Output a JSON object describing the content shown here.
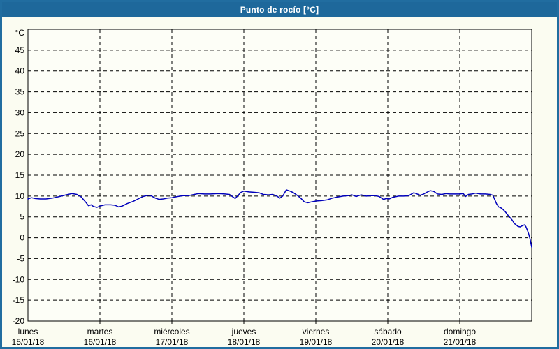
{
  "window": {
    "title": "Punto de rocío [°C]"
  },
  "colors": {
    "titlebar": "#1e689b",
    "window_border": "#216da0",
    "page_background": "#fbfcf1",
    "plot_background": "#fdfef7",
    "grid": "#000000",
    "text": "#000000",
    "series_line": "#0000bb"
  },
  "chart_data": {
    "type": "line",
    "title": "Punto de rocío [°C]",
    "y_unit": "°C",
    "ylim": [
      -20,
      50
    ],
    "y_tick_step": 5,
    "y_tick_labels": [
      45,
      40,
      35,
      30,
      25,
      20,
      15,
      10,
      5,
      0,
      -5,
      -10,
      -15,
      -20
    ],
    "x_ticks": [
      {
        "day": "lunes",
        "date": "15/01/18"
      },
      {
        "day": "martes",
        "date": "16/01/18"
      },
      {
        "day": "miércoles",
        "date": "17/01/18"
      },
      {
        "day": "jueves",
        "date": "18/01/18"
      },
      {
        "day": "viernes",
        "date": "19/01/18"
      },
      {
        "day": "sábado",
        "date": "20/01/18"
      },
      {
        "day": "domingo",
        "date": "21/01/18"
      }
    ],
    "grid": "dashed, both axes, every 5 °C and every day",
    "legend_position": "none",
    "series": [
      {
        "name": "Punto de rocío",
        "color": "#0000bb",
        "x_unit": "days since 15/01/18 00:00",
        "points": [
          [
            0,
            9.3
          ],
          [
            0.05,
            9.6
          ],
          [
            0.1,
            9.4
          ],
          [
            0.17,
            9.3
          ],
          [
            0.25,
            9.3
          ],
          [
            0.34,
            9.5
          ],
          [
            0.44,
            9.9
          ],
          [
            0.53,
            10.3
          ],
          [
            0.61,
            10.6
          ],
          [
            0.68,
            10.4
          ],
          [
            0.74,
            9.8
          ],
          [
            0.8,
            8.6
          ],
          [
            0.84,
            7.7
          ],
          [
            0.88,
            7.9
          ],
          [
            0.91,
            7.5
          ],
          [
            0.96,
            7.3
          ],
          [
            1,
            7.6
          ],
          [
            1.07,
            7.9
          ],
          [
            1.15,
            7.9
          ],
          [
            1.21,
            7.8
          ],
          [
            1.26,
            7.4
          ],
          [
            1.31,
            7.6
          ],
          [
            1.38,
            8.2
          ],
          [
            1.46,
            8.7
          ],
          [
            1.53,
            9.3
          ],
          [
            1.6,
            9.9
          ],
          [
            1.67,
            10.2
          ],
          [
            1.71,
            10.1
          ],
          [
            1.77,
            9.5
          ],
          [
            1.82,
            9.2
          ],
          [
            1.88,
            9.3
          ],
          [
            1.94,
            9.5
          ],
          [
            2,
            9.6
          ],
          [
            2.08,
            9.9
          ],
          [
            2.16,
            10.1
          ],
          [
            2.23,
            10.1
          ],
          [
            2.31,
            10.4
          ],
          [
            2.37,
            10.6
          ],
          [
            2.45,
            10.5
          ],
          [
            2.54,
            10.5
          ],
          [
            2.64,
            10.6
          ],
          [
            2.74,
            10.5
          ],
          [
            2.8,
            10.4
          ],
          [
            2.84,
            9.9
          ],
          [
            2.88,
            9.4
          ],
          [
            2.92,
            10.2
          ],
          [
            2.96,
            10.9
          ],
          [
            3,
            11.2
          ],
          [
            3.07,
            11
          ],
          [
            3.15,
            10.9
          ],
          [
            3.21,
            10.8
          ],
          [
            3.27,
            10.4
          ],
          [
            3.34,
            10.3
          ],
          [
            3.4,
            10.4
          ],
          [
            3.46,
            10
          ],
          [
            3.5,
            9.5
          ],
          [
            3.54,
            10
          ],
          [
            3.59,
            11.5
          ],
          [
            3.64,
            11.2
          ],
          [
            3.69,
            10.8
          ],
          [
            3.74,
            10.2
          ],
          [
            3.79,
            9.5
          ],
          [
            3.84,
            8.6
          ],
          [
            3.89,
            8.4
          ],
          [
            3.94,
            8.6
          ],
          [
            4,
            8.8
          ],
          [
            4.08,
            8.9
          ],
          [
            4.16,
            9.1
          ],
          [
            4.23,
            9.5
          ],
          [
            4.31,
            9.8
          ],
          [
            4.38,
            10
          ],
          [
            4.45,
            10.1
          ],
          [
            4.5,
            10.3
          ],
          [
            4.56,
            9.9
          ],
          [
            4.63,
            10.3
          ],
          [
            4.7,
            10
          ],
          [
            4.77,
            10.1
          ],
          [
            4.83,
            10.1
          ],
          [
            4.88,
            9.9
          ],
          [
            4.94,
            9.2
          ],
          [
            4.98,
            9.4
          ],
          [
            5.02,
            9.3
          ],
          [
            5.07,
            9.7
          ],
          [
            5.15,
            10
          ],
          [
            5.22,
            10
          ],
          [
            5.29,
            10.1
          ],
          [
            5.36,
            10.8
          ],
          [
            5.41,
            10.5
          ],
          [
            5.45,
            10.2
          ],
          [
            5.5,
            10.5
          ],
          [
            5.54,
            10.9
          ],
          [
            5.59,
            11.3
          ],
          [
            5.64,
            11.1
          ],
          [
            5.69,
            10.5
          ],
          [
            5.75,
            10.4
          ],
          [
            5.81,
            10.6
          ],
          [
            5.86,
            10.5
          ],
          [
            5.93,
            10.5
          ],
          [
            6,
            10.5
          ],
          [
            6.05,
            10.6
          ],
          [
            6.08,
            9.9
          ],
          [
            6.12,
            10.4
          ],
          [
            6.17,
            10.5
          ],
          [
            6.22,
            10.7
          ],
          [
            6.29,
            10.5
          ],
          [
            6.36,
            10.5
          ],
          [
            6.42,
            10.4
          ],
          [
            6.46,
            10.2
          ],
          [
            6.48,
            9.4
          ],
          [
            6.51,
            8.2
          ],
          [
            6.54,
            7.4
          ],
          [
            6.57,
            7.2
          ],
          [
            6.6,
            6.8
          ],
          [
            6.63,
            6.3
          ],
          [
            6.66,
            5.6
          ],
          [
            6.69,
            5
          ],
          [
            6.73,
            4.2
          ],
          [
            6.76,
            3.4
          ],
          [
            6.79,
            3
          ],
          [
            6.81,
            2.7
          ],
          [
            6.84,
            2.6
          ],
          [
            6.87,
            2.9
          ],
          [
            6.9,
            3.1
          ],
          [
            6.92,
            2.6
          ],
          [
            6.94,
            1.8
          ],
          [
            6.96,
            0.8
          ],
          [
            6.98,
            -0.5
          ],
          [
            6.99,
            -1.5
          ],
          [
            7,
            -2.3
          ]
        ]
      }
    ]
  }
}
